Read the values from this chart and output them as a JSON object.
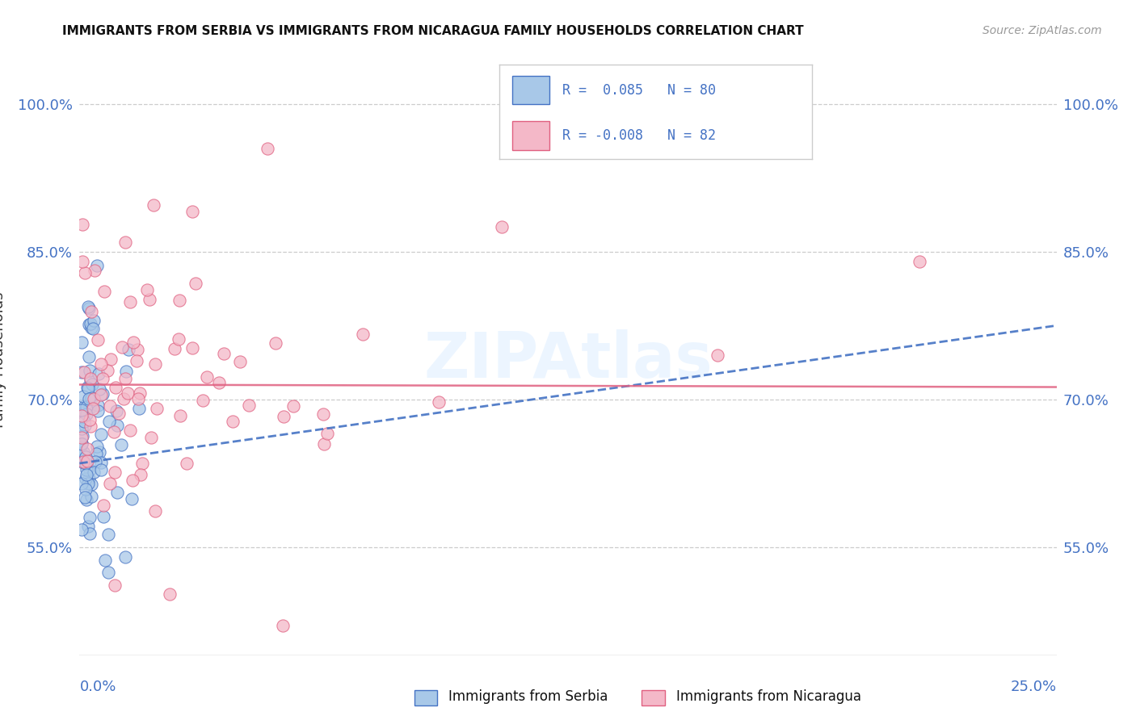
{
  "title": "IMMIGRANTS FROM SERBIA VS IMMIGRANTS FROM NICARAGUA FAMILY HOUSEHOLDS CORRELATION CHART",
  "source": "Source: ZipAtlas.com",
  "ylabel": "Family Households",
  "y_ticks": [
    "55.0%",
    "70.0%",
    "85.0%",
    "100.0%"
  ],
  "y_tick_vals": [
    0.55,
    0.7,
    0.85,
    1.0
  ],
  "x_range": [
    0.0,
    0.25
  ],
  "y_range": [
    0.44,
    1.04
  ],
  "color_serbia": "#A8C8E8",
  "color_nicaragua": "#F4B8C8",
  "color_serbia_line": "#4472C4",
  "color_nicaragua_line": "#E06080",
  "watermark": "ZIPAtlas",
  "serbia_R": 0.085,
  "serbia_N": 80,
  "nicaragua_R": -0.008,
  "nicaragua_N": 82
}
